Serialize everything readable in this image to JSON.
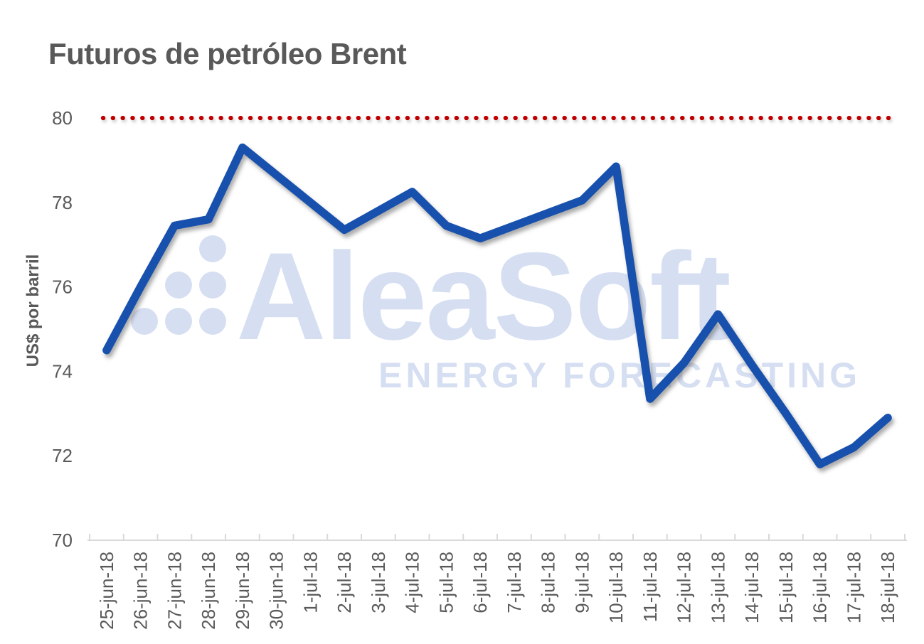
{
  "chart_data": {
    "type": "line",
    "title": "Futuros de petróleo Brent",
    "ylabel": "US$ por barril",
    "xlabel": "",
    "ylim": [
      70,
      80
    ],
    "yticks": [
      80,
      78,
      76,
      74,
      72,
      70
    ],
    "grid": "off",
    "legend": "off",
    "categories": [
      "25-jun-18",
      "26-jun-18",
      "27-jun-18",
      "28-jun-18",
      "29-jun-18",
      "30-jun-18",
      "1-jul-18",
      "2-jul-18",
      "3-jul-18",
      "4-jul-18",
      "5-jul-18",
      "6-jul-18",
      "7-jul-18",
      "8-jul-18",
      "9-jul-18",
      "10-jul-18",
      "11-jul-18",
      "12-jul-18",
      "13-jul-18",
      "14-jul-18",
      "15-jul-18",
      "16-jul-18",
      "17-jul-18",
      "18-jul-18"
    ],
    "series": [
      {
        "values": [
          74.5,
          76.0,
          77.45,
          77.6,
          79.3,
          78.65,
          78.0,
          77.35,
          77.8,
          78.25,
          77.45,
          77.15,
          77.45,
          77.75,
          78.05,
          78.85,
          73.35,
          74.2,
          75.35,
          74.15,
          73.0,
          71.8,
          72.2,
          72.9
        ],
        "color": "#1751ad"
      }
    ],
    "threshold_line": {
      "value": 80,
      "color": "#c00000",
      "style": "dotted"
    },
    "label_color": "#595959",
    "axis_color": "#d9d9d9",
    "watermark": {
      "line1": "AleaSoft",
      "line2": "ENERGY FORECASTING",
      "color": "#d6dff2"
    }
  }
}
